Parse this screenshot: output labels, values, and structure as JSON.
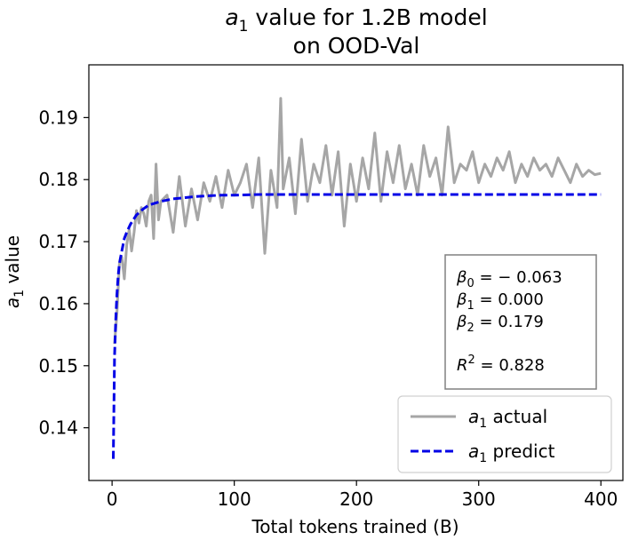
{
  "chart_data": {
    "type": "line",
    "title_line1_var": "a",
    "title_line1_sub": "1",
    "title_line1_rest": " value for 1.2B model",
    "title_line2": "on OOD-Val",
    "xlabel": "Total tokens trained (B)",
    "ylabel_var": "a",
    "ylabel_sub": "1",
    "ylabel_rest": " value",
    "xlim": [
      -19,
      418
    ],
    "ylim": [
      0.1315,
      0.1985
    ],
    "xticks": [
      0,
      100,
      200,
      300,
      400
    ],
    "xtick_labels": [
      "0",
      "100",
      "200",
      "300",
      "400"
    ],
    "yticks": [
      0.14,
      0.15,
      0.16,
      0.17,
      0.18,
      0.19
    ],
    "ytick_labels": [
      "0.14",
      "0.15",
      "0.16",
      "0.17",
      "0.18",
      "0.19"
    ],
    "series": [
      {
        "name": "actual",
        "legend_var": "a",
        "legend_sub": "1",
        "legend_rest": " actual",
        "color": "#a6a6a6",
        "style": "solid",
        "x": [
          2,
          4,
          6,
          8,
          10,
          12,
          14,
          16,
          18,
          20,
          22,
          24,
          26,
          28,
          30,
          32,
          34,
          36,
          38,
          40,
          45,
          50,
          55,
          60,
          65,
          70,
          75,
          80,
          85,
          90,
          95,
          100,
          105,
          110,
          115,
          120,
          125,
          130,
          135,
          138,
          140,
          145,
          150,
          155,
          160,
          165,
          170,
          175,
          180,
          185,
          190,
          195,
          200,
          205,
          210,
          215,
          220,
          225,
          230,
          235,
          240,
          245,
          250,
          255,
          260,
          265,
          270,
          275,
          280,
          285,
          290,
          295,
          300,
          305,
          310,
          315,
          320,
          325,
          330,
          335,
          340,
          345,
          350,
          355,
          360,
          365,
          370,
          375,
          380,
          385,
          390,
          395,
          400
        ],
        "y": [
          0.1535,
          0.1585,
          0.1665,
          0.1675,
          0.164,
          0.1695,
          0.172,
          0.1685,
          0.1715,
          0.175,
          0.173,
          0.1755,
          0.1745,
          0.1725,
          0.1765,
          0.1775,
          0.1705,
          0.1825,
          0.1735,
          0.1765,
          0.1775,
          0.1715,
          0.1805,
          0.1725,
          0.1785,
          0.1735,
          0.1795,
          0.1765,
          0.1805,
          0.1755,
          0.1815,
          0.1775,
          0.1795,
          0.1825,
          0.1755,
          0.1835,
          0.1681,
          0.1815,
          0.1755,
          0.1931,
          0.1785,
          0.1835,
          0.1745,
          0.1865,
          0.1765,
          0.1825,
          0.1795,
          0.1855,
          0.1775,
          0.1845,
          0.1725,
          0.1825,
          0.1765,
          0.1835,
          0.1785,
          0.1875,
          0.1765,
          0.1845,
          0.1795,
          0.1855,
          0.1785,
          0.1825,
          0.1775,
          0.1855,
          0.1805,
          0.1835,
          0.1775,
          0.1885,
          0.1795,
          0.1825,
          0.1815,
          0.1845,
          0.1795,
          0.1825,
          0.1805,
          0.1835,
          0.1815,
          0.1845,
          0.1795,
          0.1825,
          0.1805,
          0.1835,
          0.1815,
          0.1825,
          0.1805,
          0.1835,
          0.1815,
          0.1795,
          0.1825,
          0.1805,
          0.1815,
          0.1808,
          0.181
        ]
      },
      {
        "name": "predict",
        "legend_var": "a",
        "legend_sub": "1",
        "legend_rest": " predict",
        "color": "#0000e6",
        "style": "dashed",
        "x": [
          1,
          2,
          3,
          4,
          5,
          6,
          8,
          10,
          12,
          15,
          20,
          25,
          30,
          40,
          50,
          60,
          70,
          80,
          90,
          100,
          120,
          150,
          200,
          250,
          300,
          350,
          400
        ],
        "y": [
          0.135,
          0.1515,
          0.1575,
          0.1615,
          0.1645,
          0.1665,
          0.1685,
          0.1705,
          0.1715,
          0.1728,
          0.1743,
          0.1752,
          0.1759,
          0.1765,
          0.1769,
          0.1771,
          0.1773,
          0.1774,
          0.1775,
          0.1775,
          0.1776,
          0.1776,
          0.1776,
          0.1776,
          0.1776,
          0.1776,
          0.1776
        ]
      }
    ],
    "annotation": [
      {
        "var": "β",
        "sub": "0",
        "rest": " = − 0.063"
      },
      {
        "var": "β",
        "sub": "1",
        "rest": " = 0.000"
      },
      {
        "var": "β",
        "sub": "2",
        "rest": " = 0.179"
      },
      {
        "var": "R",
        "sup": "2",
        "rest": " = 0.828"
      }
    ],
    "legend_loc": "lower right"
  }
}
